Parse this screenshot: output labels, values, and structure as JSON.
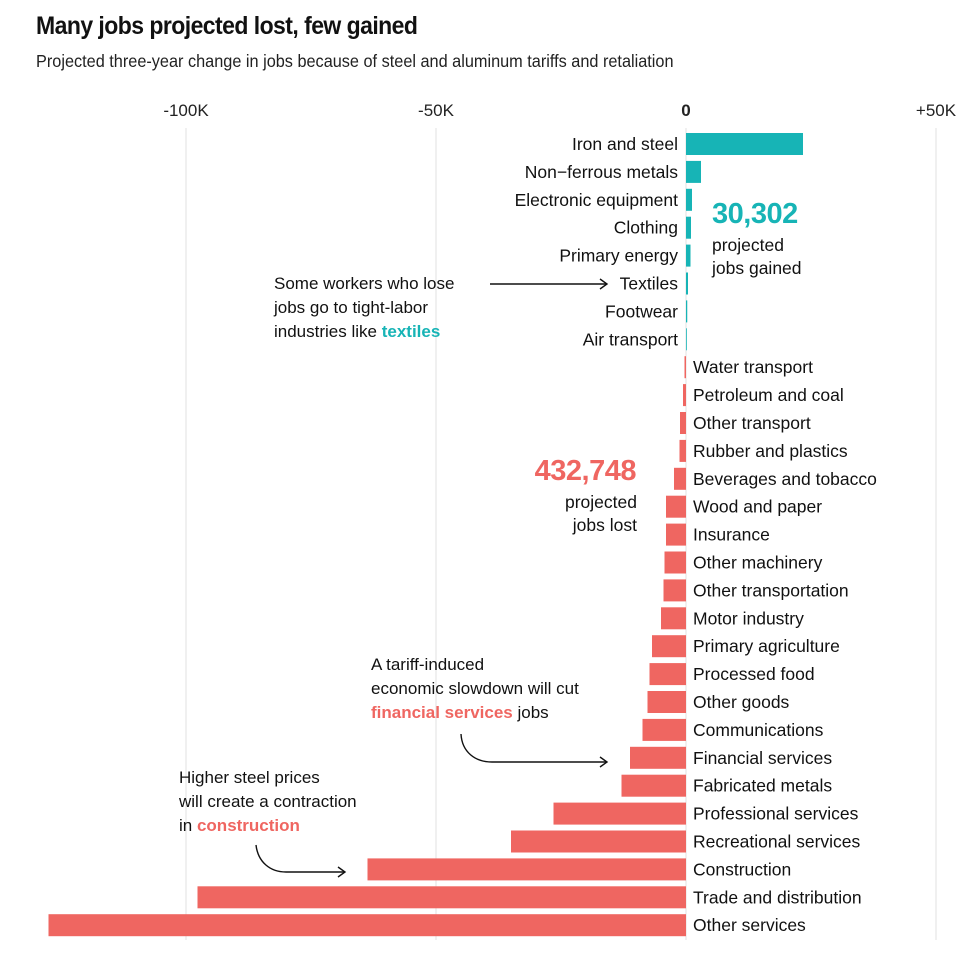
{
  "colors": {
    "gain": "#17b4b6",
    "loss": "#ef6661",
    "grid": "#e6e6e6",
    "text": "#111111"
  },
  "chart_data": {
    "type": "bar",
    "orientation": "horizontal",
    "title": "Many jobs projected lost, few gained",
    "subtitle": "Projected three-year change in jobs because of steel and aluminum tariffs and retaliation",
    "xlabel": "",
    "ylabel": "",
    "xlim": [
      -130000,
      52000
    ],
    "x_ticks": [
      {
        "value": -100000,
        "label": "-100K"
      },
      {
        "value": -50000,
        "label": "-50K"
      },
      {
        "value": 0,
        "label": "0"
      },
      {
        "value": 50000,
        "label": "+50K"
      }
    ],
    "grid": true,
    "units": "jobs",
    "categories": [
      "Iron and steel",
      "Non−ferrous metals",
      "Electronic equipment",
      "Clothing",
      "Primary energy",
      "Textiles",
      "Footwear",
      "Air transport",
      "Water transport",
      "Petroleum and coal",
      "Other transport",
      "Rubber and plastics",
      "Beverages and tobacco",
      "Wood and paper",
      "Insurance",
      "Other machinery",
      "Other transportation",
      "Motor industry",
      "Primary agriculture",
      "Processed food",
      "Other goods",
      "Communications",
      "Financial services",
      "Fabricated metals",
      "Professional services",
      "Recreational services",
      "Construction",
      "Trade and distribution",
      "Other services"
    ],
    "values": [
      23400,
      3000,
      1200,
      1000,
      900,
      400,
      250,
      150,
      -300,
      -600,
      -1200,
      -1300,
      -2400,
      -4000,
      -4000,
      -4300,
      -4500,
      -5000,
      -6800,
      -7300,
      -7700,
      -8700,
      -11200,
      -12900,
      -26500,
      -35000,
      -63700,
      -97700,
      -127500
    ],
    "totals": {
      "gained": {
        "value": "30,302",
        "label_line1": "projected",
        "label_line2": "jobs gained"
      },
      "lost": {
        "value": "432,748",
        "label_line1": "projected",
        "label_line2": "jobs lost"
      }
    },
    "annotations": [
      {
        "id": "textiles",
        "lines": [
          "Some workers who lose",
          "jobs go to tight-labor",
          "industries like "
        ],
        "highlight": "textiles",
        "highlight_color": "gain",
        "points_to": "Textiles"
      },
      {
        "id": "financial",
        "lines": [
          "A tariff-induced",
          "economic slowdown will cut",
          ""
        ],
        "highlight": "financial services",
        "suffix": " jobs",
        "highlight_color": "loss",
        "points_to": "Financial services"
      },
      {
        "id": "construction",
        "lines": [
          "Higher steel prices",
          "will create a contraction",
          "in "
        ],
        "highlight": "construction",
        "highlight_color": "loss",
        "points_to": "Construction"
      }
    ]
  }
}
